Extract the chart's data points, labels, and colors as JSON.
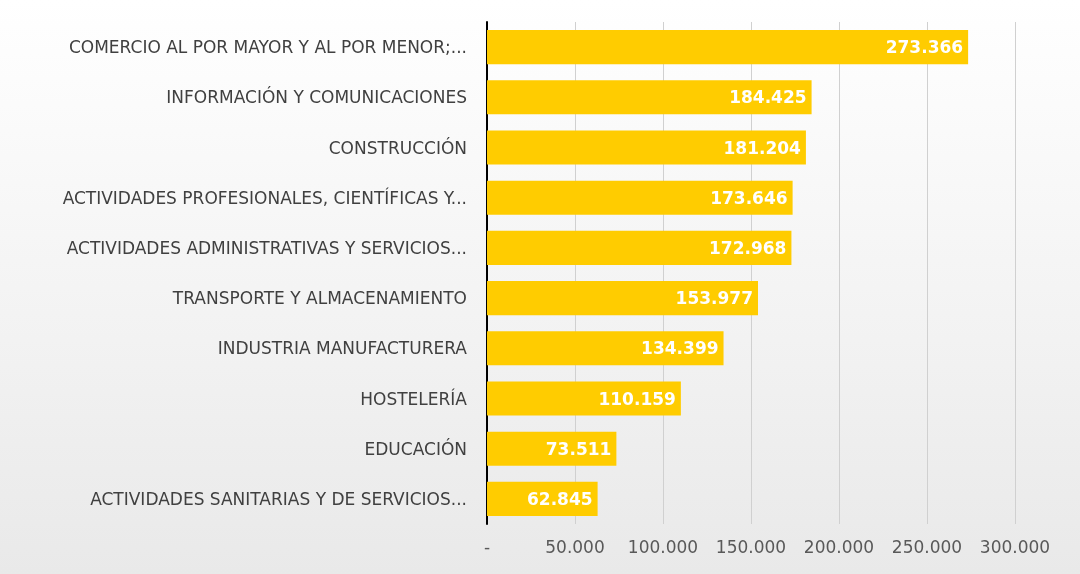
{
  "chart_data": {
    "type": "bar",
    "orientation": "horizontal",
    "categories": [
      "COMERCIO AL POR MAYOR Y AL POR MENOR;...",
      "INFORMACIÓN Y COMUNICACIONES",
      "CONSTRUCCIÓN",
      "ACTIVIDADES PROFESIONALES, CIENTÍFICAS Y...",
      "ACTIVIDADES ADMINISTRATIVAS Y SERVICIOS...",
      "TRANSPORTE Y ALMACENAMIENTO",
      "INDUSTRIA MANUFACTURERA",
      "HOSTELERÍA",
      "EDUCACIÓN",
      "ACTIVIDADES SANITARIAS Y DE SERVICIOS..."
    ],
    "values": [
      273366,
      184425,
      181204,
      173646,
      172968,
      153977,
      134399,
      110159,
      73511,
      62845
    ],
    "value_labels": [
      "273.366",
      "184.425",
      "181.204",
      "173.646",
      "172.968",
      "153.977",
      "134.399",
      "110.159",
      "73.511",
      "62.845"
    ],
    "color": "#ffcc00",
    "xlim": [
      0,
      300000
    ],
    "xticks": [
      {
        "value": 0,
        "label": "-"
      },
      {
        "value": 50000,
        "label": "50.000"
      },
      {
        "value": 100000,
        "label": "100.000"
      },
      {
        "value": 150000,
        "label": "150.000"
      },
      {
        "value": 200000,
        "label": "200.000"
      },
      {
        "value": 250000,
        "label": "250.000"
      },
      {
        "value": 300000,
        "label": "300.000"
      }
    ],
    "grid": "x"
  }
}
